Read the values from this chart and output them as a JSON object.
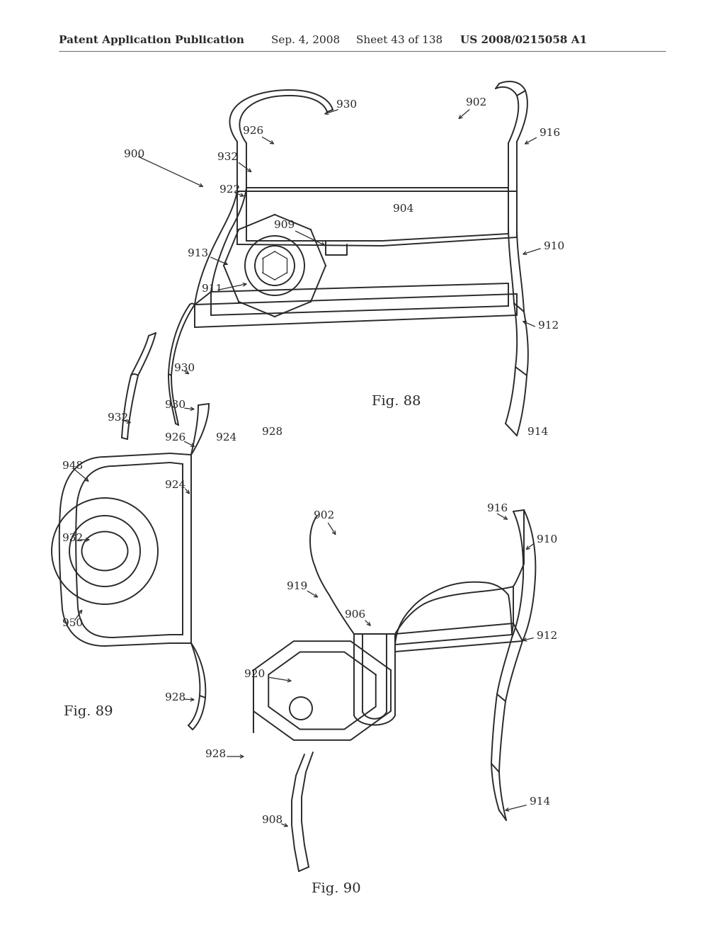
{
  "background_color": "#ffffff",
  "page_width": 10.24,
  "page_height": 13.2,
  "header_text": "Patent Application Publication",
  "header_date": "Sep. 4, 2008",
  "header_sheet": "Sheet 43 of 138",
  "header_patent": "US 2008/0215058 A1",
  "header_fontsize": 11,
  "fig88_label": "Fig. 88",
  "fig89_label": "Fig. 89",
  "fig90_label": "Fig. 90",
  "fig_label_fontsize": 14,
  "annotation_fontsize": 11,
  "line_color": "#2a2a2a",
  "line_width": 1.4,
  "thin_line": 0.9
}
